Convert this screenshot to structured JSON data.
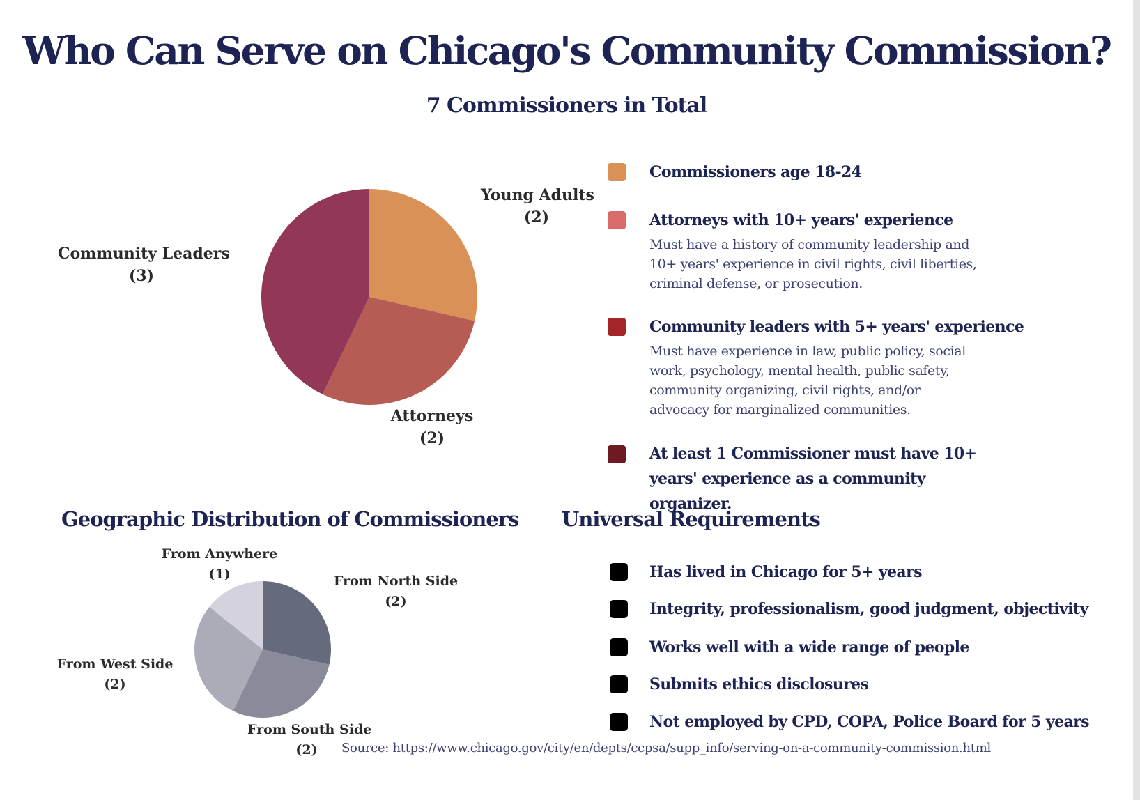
{
  "title": "Who Can Serve on Chicago's Community Commission?",
  "subtitle": "7 Commissioners in Total",
  "chart_data": [
    {
      "type": "pie",
      "values": [
        2,
        2,
        3
      ],
      "labels": [
        {
          "name": "Young Adults",
          "count": "(2)"
        },
        {
          "name": "Attorneys",
          "count": "(2)"
        },
        {
          "name": "Community Leaders",
          "count": "(3)"
        }
      ],
      "colors": [
        "#d99158",
        "#b75b55",
        "#923758"
      ]
    },
    {
      "type": "pie",
      "title": "Geographic Distribution of Commissioners",
      "values": [
        2,
        2,
        2,
        1
      ],
      "labels": [
        {
          "name": "From North Side",
          "count": "(2)"
        },
        {
          "name": "From South Side",
          "count": "(2)"
        },
        {
          "name": "From West Side",
          "count": "(2)"
        },
        {
          "name": "From Anywhere",
          "count": "(1)"
        }
      ],
      "colors": [
        "#656a7c",
        "#8a8b9a",
        "#acabb8",
        "#d4d2dc"
      ]
    }
  ],
  "legend": [
    {
      "title": "Commissioners age 18-24",
      "description": "",
      "color": "#d99158"
    },
    {
      "title": "Attorneys with 10+ years' experience",
      "description": "Must have a history of community leadership and 10+ years' experience in civil rights, civil liberties, criminal defense, or prosecution.",
      "color": "#d96b6b"
    },
    {
      "title": "Community leaders with 5+ years' experience",
      "description": "Must have experience in law, public policy, social work, psychology,  mental health, public safety, community organizing, civil rights, and/or advocacy for marginalized communities.",
      "color": "#a3252a"
    },
    {
      "title": "At least 1 Commissioner must have 10+ years' experience as a community organizer.",
      "description": "",
      "color": "#6d1a22"
    }
  ],
  "universal": {
    "title": "Universal Requirements",
    "items": [
      "Has lived in Chicago for 5+ years",
      "Integrity, professionalism, good judgment, objectivity",
      "Works well with a wide range of people",
      "Submits ethics disclosures",
      "Not employed by CPD, COPA, Police Board for 5 years"
    ]
  },
  "source": "Source: https://www.chicago.gov/city/en/depts/ccpsa/supp_info/serving-on-a-community-commission.html"
}
